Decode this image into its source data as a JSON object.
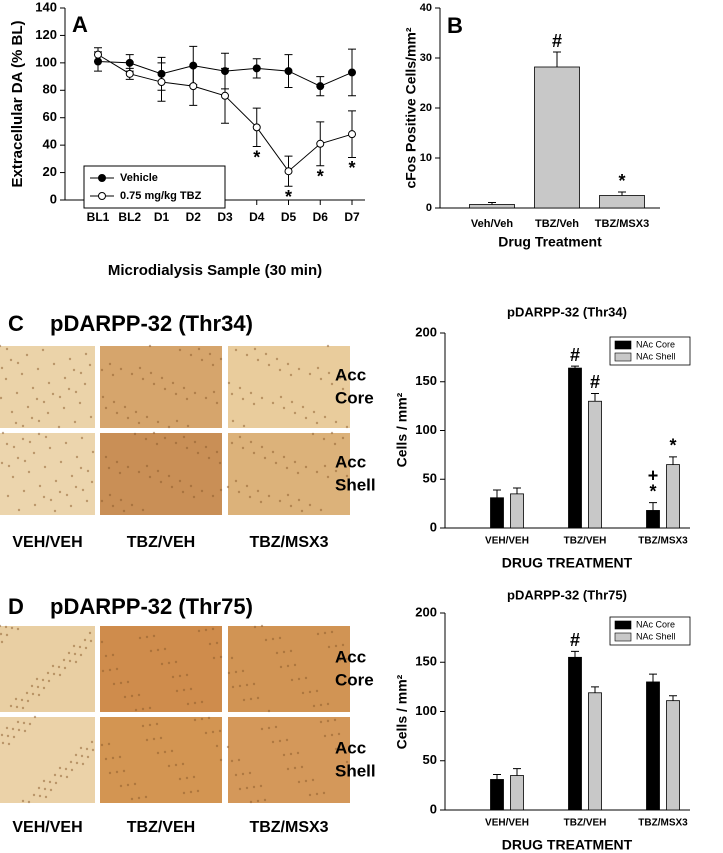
{
  "chart_data": [
    {
      "panel": "A",
      "type": "line",
      "categories": [
        "BL1",
        "BL2",
        "D1",
        "D2",
        "D3",
        "D4",
        "D5",
        "D6",
        "D7"
      ],
      "series": [
        {
          "name": "Vehicle",
          "color": "#000000",
          "marker": "filled",
          "values": [
            101,
            100,
            92,
            98,
            94,
            96,
            94,
            83,
            93
          ],
          "errors": [
            7,
            6,
            12,
            14,
            13,
            7,
            12,
            7,
            17
          ]
        },
        {
          "name": "0.75 mg/kg TBZ",
          "color": "#000000",
          "marker": "open",
          "values": [
            106,
            92,
            86,
            83,
            76,
            53,
            21,
            41,
            48
          ],
          "errors": [
            5,
            4,
            14,
            14,
            20,
            14,
            11,
            16,
            17
          ],
          "annotations": [
            null,
            null,
            null,
            null,
            null,
            "*",
            "*",
            "*",
            "*"
          ]
        }
      ],
      "ylim": [
        0,
        140
      ],
      "yticks": [
        0,
        20,
        40,
        60,
        80,
        100,
        120,
        140
      ],
      "y_label": "Extracellular DA (% BL)",
      "x_label": "Microdialysis Sample (30 min)",
      "legend": "lower left"
    },
    {
      "panel": "B",
      "type": "bar",
      "categories": [
        "Veh/Veh",
        "TBZ/Veh",
        "TBZ/MSX3"
      ],
      "values": [
        0.7,
        28.2,
        2.5
      ],
      "errors": [
        0.4,
        3,
        0.7
      ],
      "annotations": [
        null,
        "#",
        "*"
      ],
      "color": "#c8c8c8",
      "ylim": [
        0,
        40
      ],
      "yticks": [
        0,
        10,
        20,
        30,
        40
      ],
      "y_label": "cFos Positive Cells/mm²",
      "x_label": "Drug Treatment"
    },
    {
      "type": "bar",
      "title": "pDARPP-32 (Thr34)",
      "categories": [
        "VEH/VEH",
        "TBZ/VEH",
        "TBZ/MSX3"
      ],
      "series": [
        {
          "name": "NAc Core",
          "color": "#000000",
          "values": [
            31,
            164,
            18
          ],
          "errors": [
            8,
            2,
            8
          ],
          "annotations": [
            null,
            "#",
            [
              "+",
              "*"
            ]
          ]
        },
        {
          "name": "NAc Shell",
          "color": "#c8c8c8",
          "values": [
            35,
            130,
            65
          ],
          "errors": [
            6,
            8,
            8
          ],
          "annotations": [
            null,
            "#",
            "*"
          ]
        }
      ],
      "ylim": [
        0,
        200
      ],
      "yticks": [
        0,
        50,
        100,
        150,
        200
      ],
      "y_label": "Cells / mm²",
      "x_label": "DRUG TREATMENT",
      "legend": "upper right"
    },
    {
      "type": "bar",
      "title": "pDARPP-32 (Thr75)",
      "categories": [
        "VEH/VEH",
        "TBZ/VEH",
        "TBZ/MSX3"
      ],
      "series": [
        {
          "name": "NAc Core",
          "color": "#000000",
          "values": [
            31,
            155,
            130
          ],
          "errors": [
            5,
            6,
            8
          ],
          "annotations": [
            null,
            "#",
            null
          ]
        },
        {
          "name": "NAc Shell",
          "color": "#c8c8c8",
          "values": [
            35,
            119,
            111
          ],
          "errors": [
            7,
            6,
            5
          ]
        }
      ],
      "ylim": [
        0,
        200
      ],
      "yticks": [
        0,
        50,
        100,
        150,
        200
      ],
      "y_label": "Cells / mm²",
      "x_label": "DRUG TREATMENT",
      "legend": "upper right"
    }
  ],
  "image_panels": [
    {
      "panel": "C",
      "title": "pDARPP-32 (Thr34)",
      "row_labels": [
        [
          "Acc",
          "Core"
        ],
        [
          "Acc",
          "Shell"
        ]
      ],
      "column_labels": [
        "VEH/VEH",
        "TBZ/VEH",
        "TBZ/MSX3"
      ]
    },
    {
      "panel": "D",
      "title": "pDARPP-32 (Thr75)",
      "row_labels": [
        [
          "Acc",
          "Core"
        ],
        [
          "Acc",
          "Shell"
        ]
      ],
      "column_labels": [
        "VEH/VEH",
        "TBZ/VEH",
        "TBZ/MSX3"
      ]
    }
  ]
}
